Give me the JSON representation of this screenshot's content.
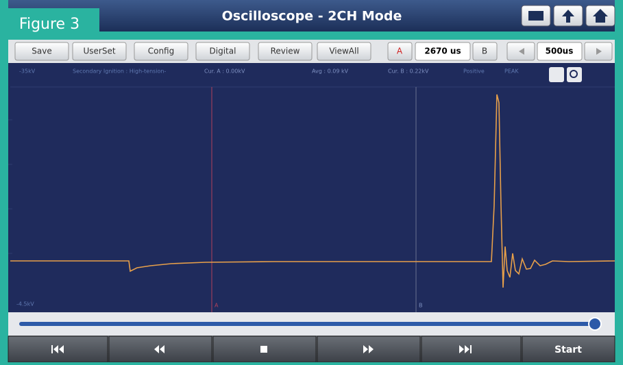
{
  "figure_label": "Figure 3",
  "header": {
    "title": "Oscilloscope - 2CH Mode"
  },
  "toolbar": {
    "buttons": [
      "Save",
      "UserSet",
      "Config",
      "Digital",
      "Review",
      "ViewAll"
    ],
    "cursor_a": "A",
    "cursor_time": "2670 us",
    "cursor_b": "B",
    "timebase": "500us"
  },
  "screen": {
    "scale_top": "-35kV",
    "channel": "Secondary Ignition : High-tension-",
    "cur_a": "Cur. A : 0.00kV",
    "avg": "Avg : 0.09 kV",
    "cur_b": "Cur. B : 0.22kV",
    "polarity": "Positive",
    "mode": "PEAK",
    "scale_bottom": "-4.5kV",
    "marker_a": "A",
    "marker_b": "B"
  },
  "footer": {
    "start": "Start"
  }
}
